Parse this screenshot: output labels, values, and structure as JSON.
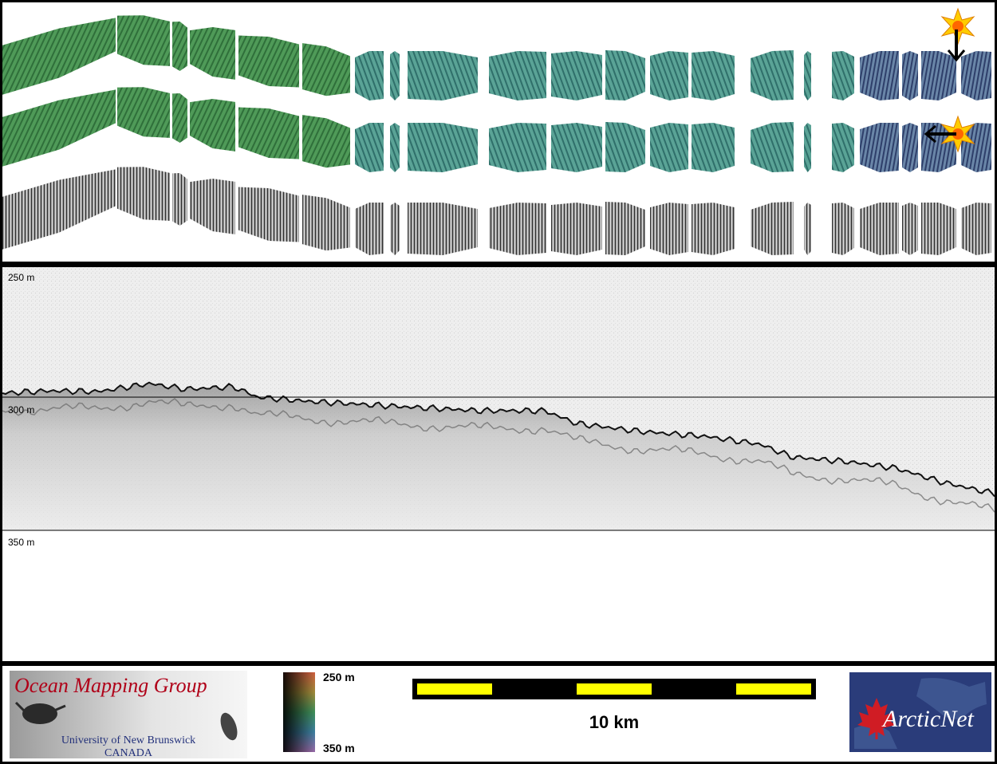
{
  "profile": {
    "depth_top": "250 m",
    "depth_mid": "300 m",
    "depth_bottom": "350 m"
  },
  "legend": {
    "omg_title": "Ocean Mapping Group",
    "omg_university": "University of New Brunswick",
    "omg_country": "CANADA",
    "colorbar_top": "250 m",
    "colorbar_bottom": "350 m",
    "scale_label": "10 km",
    "arcticnet_text": "ArcticNet"
  },
  "colors": {
    "scale_fill": "#ffff00",
    "scale_dark": "#000000",
    "omg_title": "#b00018",
    "arcticnet_bg": "#2a3c7a",
    "sun": "#ffcc00"
  }
}
